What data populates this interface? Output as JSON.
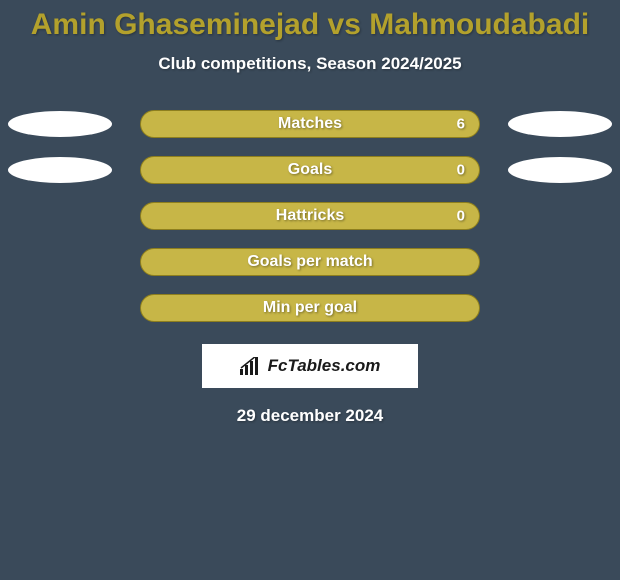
{
  "background_color": "#3a4a5a",
  "title": {
    "text": "Amin Ghaseminejad vs Mahmoudabadi",
    "color": "#b3a12c",
    "fontsize": 30
  },
  "subtitle": {
    "text": "Club competitions, Season 2024/2025",
    "color": "#ffffff",
    "fontsize": 17
  },
  "ellipse": {
    "color": "#ffffff",
    "width": 104,
    "height": 26
  },
  "bar": {
    "track_color": "#b3a12c",
    "fill_color": "#c7b647",
    "border_color": "#8e7f1e",
    "label_color": "#ffffff",
    "value_color": "#ffffff",
    "label_fontsize": 16,
    "value_fontsize": 15
  },
  "rows": [
    {
      "label": "Matches",
      "value": "6",
      "fill_pct": 100,
      "show_left_ellipse": true,
      "show_right_ellipse": true,
      "show_value": true
    },
    {
      "label": "Goals",
      "value": "0",
      "fill_pct": 100,
      "show_left_ellipse": true,
      "show_right_ellipse": true,
      "show_value": true
    },
    {
      "label": "Hattricks",
      "value": "0",
      "fill_pct": 100,
      "show_left_ellipse": false,
      "show_right_ellipse": false,
      "show_value": true
    },
    {
      "label": "Goals per match",
      "value": "",
      "fill_pct": 100,
      "show_left_ellipse": false,
      "show_right_ellipse": false,
      "show_value": false
    },
    {
      "label": "Min per goal",
      "value": "",
      "fill_pct": 100,
      "show_left_ellipse": false,
      "show_right_ellipse": false,
      "show_value": false
    }
  ],
  "brand": {
    "background_color": "#ffffff",
    "text_color": "#1a1a1a",
    "text": "FcTables.com",
    "fontsize": 17
  },
  "date": {
    "text": "29 december 2024",
    "color": "#ffffff",
    "fontsize": 17
  }
}
